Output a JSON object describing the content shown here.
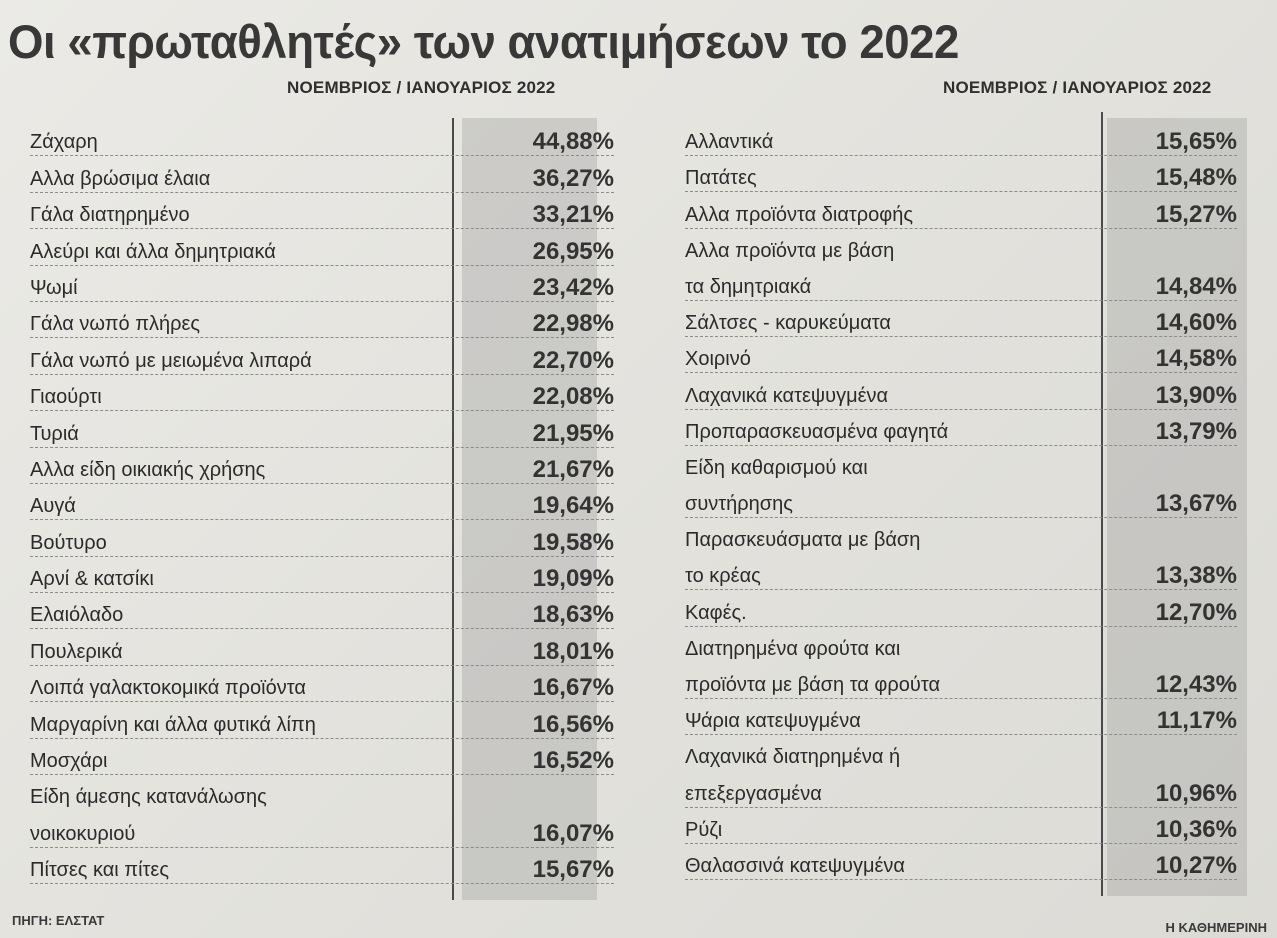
{
  "title": "Οι «πρωταθλητές» των ανατιμήσεων το 2022",
  "left_header": "ΝΟΕΜΒΡΙΟΣ / ΙΑΝΟΥΑΡΙΟΣ 2022",
  "right_header": "ΝΟΕΜΒΡΙΟΣ / ΙΑΝΟΥΑΡΙΟΣ 2022",
  "left_rows": [
    {
      "label": [
        "Ζάχαρη"
      ],
      "value": "44,88%"
    },
    {
      "label": [
        "Αλλα βρώσιμα έλαια"
      ],
      "value": "36,27%"
    },
    {
      "label": [
        "Γάλα διατηρημένο"
      ],
      "value": "33,21%"
    },
    {
      "label": [
        "Αλεύρι και άλλα δημητριακά"
      ],
      "value": "26,95%"
    },
    {
      "label": [
        "Ψωμί"
      ],
      "value": "23,42%"
    },
    {
      "label": [
        "Γάλα νωπό πλήρες"
      ],
      "value": "22,98%"
    },
    {
      "label": [
        "Γάλα νωπό με μειωμένα λιπαρά"
      ],
      "value": "22,70%"
    },
    {
      "label": [
        "Γιαούρτι"
      ],
      "value": "22,08%"
    },
    {
      "label": [
        "Τυριά"
      ],
      "value": "21,95%"
    },
    {
      "label": [
        "Αλλα είδη οικιακής χρήσης"
      ],
      "value": "21,67%"
    },
    {
      "label": [
        "Αυγά"
      ],
      "value": "19,64%"
    },
    {
      "label": [
        "Βούτυρο"
      ],
      "value": "19,58%"
    },
    {
      "label": [
        "Αρνί & κατσίκι"
      ],
      "value": "19,09%"
    },
    {
      "label": [
        "Ελαιόλαδο"
      ],
      "value": "18,63%"
    },
    {
      "label": [
        "Πουλερικά"
      ],
      "value": "18,01%"
    },
    {
      "label": [
        "Λοιπά γαλακτοκομικά προϊόντα"
      ],
      "value": "16,67%"
    },
    {
      "label": [
        "Μαργαρίνη και άλλα φυτικά λίπη"
      ],
      "value": "16,56%"
    },
    {
      "label": [
        "Μοσχάρι"
      ],
      "value": "16,52%"
    },
    {
      "label": [
        "Είδη άμεσης κατανάλωσης",
        "νοικοκυριού"
      ],
      "value": "16,07%"
    },
    {
      "label": [
        "Πίτσες και πίτες"
      ],
      "value": "15,67%"
    }
  ],
  "right_rows": [
    {
      "label": [
        "Αλλαντικά"
      ],
      "value": "15,65%"
    },
    {
      "label": [
        "Πατάτες"
      ],
      "value": "15,48%"
    },
    {
      "label": [
        "Αλλα προϊόντα διατροφής"
      ],
      "value": "15,27%"
    },
    {
      "label": [
        "Αλλα προϊόντα με βάση",
        "τα δημητριακά"
      ],
      "value": "14,84%"
    },
    {
      "label": [
        "Σάλτσες - καρυκεύματα"
      ],
      "value": "14,60%"
    },
    {
      "label": [
        "Χοιρινό"
      ],
      "value": "14,58%"
    },
    {
      "label": [
        "Λαχανικά κατεψυγμένα"
      ],
      "value": "13,90%"
    },
    {
      "label": [
        "Προπαρασκευασμένα φαγητά"
      ],
      "value": "13,79%"
    },
    {
      "label": [
        "Είδη καθαρισμού και",
        "συντήρησης"
      ],
      "value": "13,67%"
    },
    {
      "label": [
        "Παρασκευάσματα με βάση",
        "το κρέας"
      ],
      "value": "13,38%"
    },
    {
      "label": [
        "Καφές."
      ],
      "value": "12,70%"
    },
    {
      "label": [
        "Διατηρημένα φρούτα και",
        "προϊόντα με βάση τα φρούτα"
      ],
      "value": "12,43%"
    },
    {
      "label": [
        "Ψάρια κατεψυγμένα"
      ],
      "value": "11,17%"
    },
    {
      "label": [
        "Λαχανικά διατηρημένα ή",
        "επεξεργασμένα"
      ],
      "value": "10,96%"
    },
    {
      "label": [
        "Ρύζι"
      ],
      "value": "10,36%"
    },
    {
      "label": [
        "Θαλασσινά κατεψυγμένα"
      ],
      "value": "10,27%"
    }
  ],
  "source": "ΠΗΓΗ: ΕΛΣΤΑΤ",
  "publisher": "Η ΚΑΘΗΜΕΡΙΝΗ"
}
